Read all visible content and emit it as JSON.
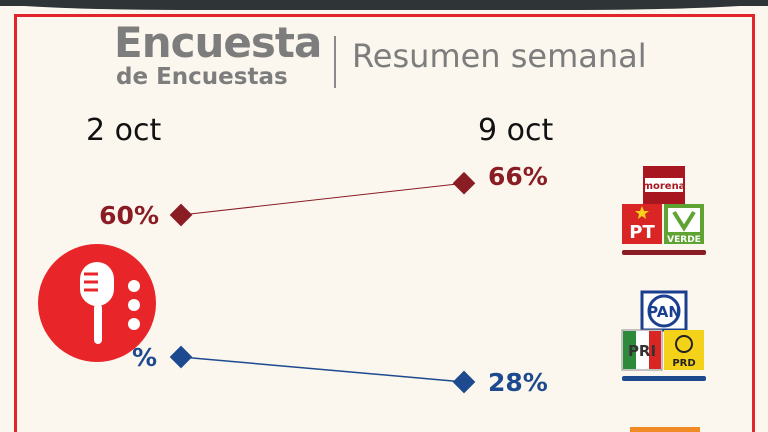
{
  "header": {
    "title_line1": "Encuesta",
    "title_line2": "de Encuestas",
    "title_right": "Resumen semanal"
  },
  "chart_data": {
    "type": "line",
    "x": [
      "2 oct",
      "9 oct"
    ],
    "series": [
      {
        "name": "",
        "values": [
          60,
          66
        ],
        "labels": [
          "60%",
          "66%"
        ],
        "color": "#8a1c23"
      },
      {
        "name": "",
        "values": [
          null,
          28
        ],
        "labels": [
          "",
          "28%"
        ],
        "color": "#1d4a8f"
      }
    ],
    "title": "Encuesta de Encuestas",
    "xlabel": "",
    "ylabel": ""
  },
  "logos": {
    "coalition1": {
      "icons": [
        "morena-logo",
        "pt-logo",
        "verde-logo"
      ],
      "text": [
        "morena",
        "PT",
        "VERDE"
      ],
      "underline_color": "#8a1c23"
    },
    "coalition2": {
      "icons": [
        "pan-logo",
        "pri-logo",
        "prd-logo"
      ],
      "text": [
        "PAN",
        "PRI",
        "PRD"
      ],
      "underline_color": "#1d4a8f"
    }
  },
  "overlay": {
    "icon": "podcast-microphone-icon",
    "color": "#e8262a"
  },
  "colors": {
    "frame": "#e0262b",
    "title": "#7d7d7d",
    "background": "#fbf6ee"
  }
}
